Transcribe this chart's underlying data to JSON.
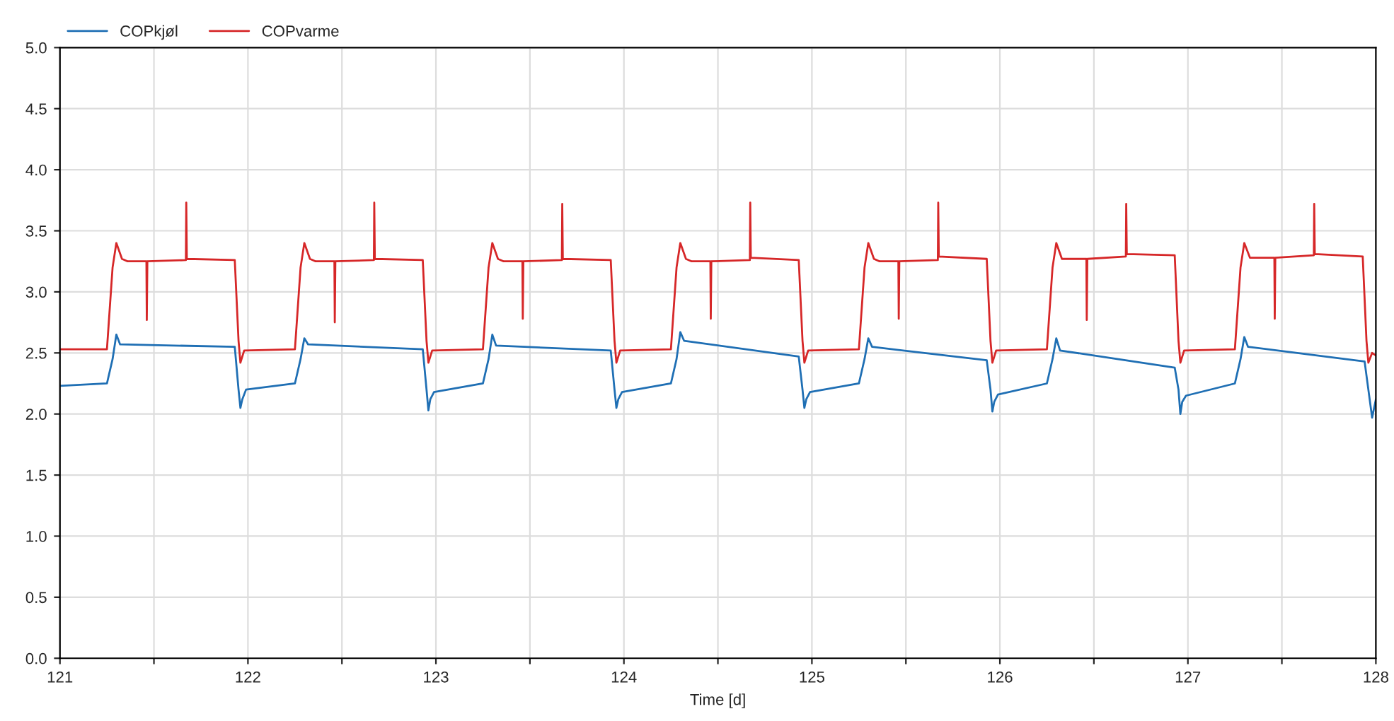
{
  "chart_data": {
    "type": "line",
    "xlabel": "Time [d]",
    "xlim": [
      121,
      128
    ],
    "ylim": [
      0,
      5
    ],
    "xticks": [
      121,
      {
        "value": 121.5,
        "label": null
      },
      122,
      {
        "value": 122.5,
        "label": null
      },
      123,
      {
        "value": 123.5,
        "label": null
      },
      124,
      {
        "value": 124.5,
        "label": null
      },
      125,
      {
        "value": 125.5,
        "label": null
      },
      126,
      {
        "value": 126.5,
        "label": null
      },
      127,
      {
        "value": 127.5,
        "label": null
      },
      128
    ],
    "yticks": [
      {
        "value": 0,
        "label": "0.0"
      },
      0.5,
      {
        "value": 1,
        "label": "1.0"
      },
      1.5,
      {
        "value": 2,
        "label": "2.0"
      },
      2.5,
      {
        "value": 3,
        "label": "3.0"
      },
      3.5,
      {
        "value": 4,
        "label": "4.0"
      },
      4.5,
      {
        "value": 5,
        "label": "5.0"
      }
    ],
    "grid": true,
    "legend": "top left",
    "line_style": "solid",
    "series": [
      {
        "name": "COPkjøl",
        "color": "#1f6fb4",
        "x": [
          121,
          121.25,
          121.28,
          121.3,
          121.32,
          121.93,
          121.95,
          121.96,
          121.97,
          121.99,
          122.25,
          122.28,
          122.3,
          122.32,
          122.93,
          122.95,
          122.96,
          122.97,
          122.99,
          123.25,
          123.28,
          123.3,
          123.32,
          123.93,
          123.95,
          123.96,
          123.97,
          123.99,
          124.25,
          124.28,
          124.3,
          124.32,
          124.93,
          124.95,
          124.96,
          124.97,
          124.99,
          125.25,
          125.28,
          125.3,
          125.32,
          125.93,
          125.95,
          125.96,
          125.97,
          125.99,
          126.25,
          126.28,
          126.3,
          126.32,
          126.93,
          126.95,
          126.96,
          126.97,
          126.99,
          127.25,
          127.28,
          127.3,
          127.32,
          127.94,
          127.96,
          127.98,
          128
        ],
        "values": [
          2.23,
          2.25,
          2.45,
          2.65,
          2.57,
          2.55,
          2.2,
          2.05,
          2.12,
          2.2,
          2.25,
          2.45,
          2.62,
          2.57,
          2.53,
          2.2,
          2.03,
          2.12,
          2.18,
          2.25,
          2.45,
          2.65,
          2.56,
          2.52,
          2.2,
          2.05,
          2.12,
          2.18,
          2.25,
          2.45,
          2.67,
          2.6,
          2.47,
          2.2,
          2.05,
          2.12,
          2.18,
          2.25,
          2.45,
          2.62,
          2.55,
          2.44,
          2.2,
          2.02,
          2.1,
          2.16,
          2.25,
          2.45,
          2.62,
          2.52,
          2.38,
          2.2,
          2.0,
          2.1,
          2.15,
          2.25,
          2.45,
          2.63,
          2.55,
          2.43,
          2.2,
          1.97,
          2.12
        ]
      },
      {
        "name": "COPvarme",
        "color": "#d62728",
        "x": [
          121,
          121.25,
          121.28,
          121.3,
          121.33,
          121.36,
          121.46,
          121.462,
          121.465,
          121.67,
          121.672,
          121.675,
          121.93,
          121.95,
          121.96,
          121.98,
          122.25,
          122.28,
          122.3,
          122.33,
          122.36,
          122.46,
          122.462,
          122.465,
          122.67,
          122.672,
          122.675,
          122.93,
          122.95,
          122.96,
          122.98,
          123.25,
          123.28,
          123.3,
          123.33,
          123.36,
          123.46,
          123.462,
          123.465,
          123.67,
          123.672,
          123.675,
          123.93,
          123.95,
          123.96,
          123.98,
          124.25,
          124.28,
          124.3,
          124.33,
          124.36,
          124.46,
          124.462,
          124.465,
          124.67,
          124.672,
          124.675,
          124.93,
          124.95,
          124.96,
          124.98,
          125.25,
          125.28,
          125.3,
          125.33,
          125.36,
          125.46,
          125.462,
          125.465,
          125.67,
          125.672,
          125.675,
          125.93,
          125.95,
          125.96,
          125.98,
          126.25,
          126.28,
          126.3,
          126.33,
          126.36,
          126.46,
          126.462,
          126.465,
          126.67,
          126.672,
          126.675,
          126.93,
          126.95,
          126.96,
          126.98,
          127.25,
          127.28,
          127.3,
          127.33,
          127.36,
          127.46,
          127.462,
          127.465,
          127.67,
          127.672,
          127.675,
          127.93,
          127.95,
          127.96,
          127.98,
          128
        ],
        "values": [
          2.53,
          2.53,
          3.2,
          3.4,
          3.27,
          3.25,
          3.25,
          2.77,
          3.25,
          3.26,
          3.73,
          3.27,
          3.26,
          2.6,
          2.42,
          2.52,
          2.53,
          3.2,
          3.4,
          3.27,
          3.25,
          3.25,
          2.75,
          3.25,
          3.26,
          3.73,
          3.27,
          3.26,
          2.6,
          2.42,
          2.52,
          2.53,
          3.2,
          3.4,
          3.27,
          3.25,
          3.25,
          2.78,
          3.25,
          3.26,
          3.72,
          3.27,
          3.26,
          2.6,
          2.42,
          2.52,
          2.53,
          3.2,
          3.4,
          3.27,
          3.25,
          3.25,
          2.78,
          3.25,
          3.26,
          3.73,
          3.28,
          3.26,
          2.6,
          2.42,
          2.52,
          2.53,
          3.2,
          3.4,
          3.27,
          3.25,
          3.25,
          2.78,
          3.25,
          3.26,
          3.73,
          3.29,
          3.27,
          2.6,
          2.42,
          2.52,
          2.53,
          3.2,
          3.4,
          3.27,
          3.27,
          3.27,
          2.77,
          3.27,
          3.29,
          3.72,
          3.31,
          3.3,
          2.6,
          2.42,
          2.52,
          2.53,
          3.2,
          3.4,
          3.28,
          3.28,
          3.28,
          2.78,
          3.28,
          3.3,
          3.72,
          3.31,
          3.29,
          2.6,
          2.42,
          2.5,
          2.48
        ]
      }
    ]
  }
}
